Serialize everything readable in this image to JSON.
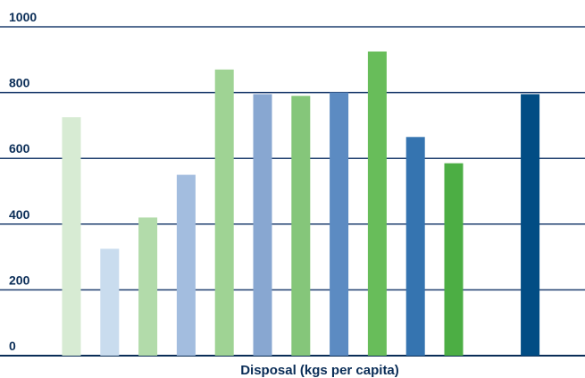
{
  "chart_data": {
    "type": "bar",
    "title": "",
    "xlabel": "Disposal (kgs per capita)",
    "ylabel": "",
    "ylim": [
      0,
      1000
    ],
    "yticks": [
      0,
      200,
      400,
      600,
      800,
      1000
    ],
    "grid": true,
    "legend": "none",
    "categories": [
      "",
      "",
      "",
      "",
      "",
      "",
      "",
      "",
      "",
      "",
      "",
      "",
      ""
    ],
    "values": [
      725,
      325,
      420,
      550,
      870,
      795,
      790,
      800,
      925,
      665,
      585,
      null,
      795
    ],
    "colors": [
      "#d7ebd3",
      "#c9dcee",
      "#b2dbaa",
      "#a3bddf",
      "#9fd394",
      "#88a7d1",
      "#85c67a",
      "#5c8bc2",
      "#68bd5a",
      "#3574b0",
      "#4cae44",
      "",
      "#024d84"
    ],
    "gridline_color": "#1f3f6f",
    "axis_color": "#0a2d57"
  }
}
